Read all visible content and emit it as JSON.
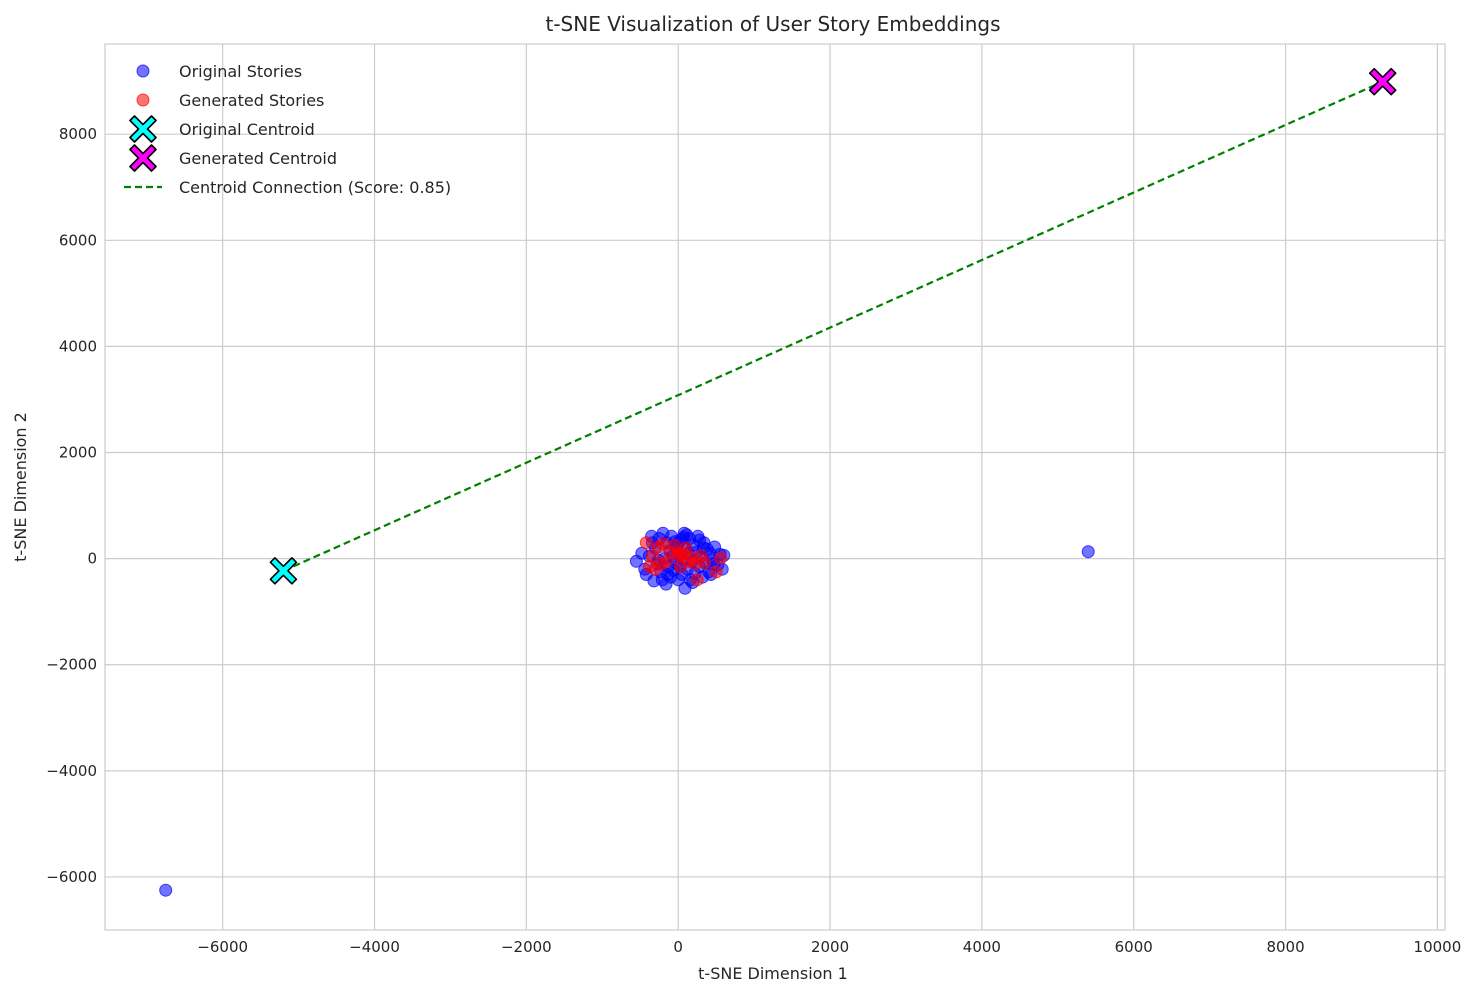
{
  "chart_data": {
    "type": "scatter",
    "title": "t-SNE Visualization of User Story Embeddings",
    "xlabel": "t-SNE Dimension 1",
    "ylabel": "t-SNE Dimension 2",
    "xlim": [
      -7550,
      10100
    ],
    "ylim": [
      -7000,
      9700
    ],
    "xticks": [
      -6000,
      -4000,
      -2000,
      0,
      2000,
      4000,
      6000,
      8000,
      10000
    ],
    "xtick_labels": [
      "−6000",
      "−4000",
      "−2000",
      "0",
      "2000",
      "4000",
      "6000",
      "8000",
      "10000"
    ],
    "yticks": [
      -6000,
      -4000,
      -2000,
      0,
      2000,
      4000,
      6000,
      8000
    ],
    "ytick_labels": [
      "−6000",
      "−4000",
      "−2000",
      "0",
      "2000",
      "4000",
      "6000",
      "8000"
    ],
    "grid": true,
    "legend_position": "top-left",
    "series": [
      {
        "name": "Original Stories",
        "kind": "points",
        "color": "#0000ff",
        "points": [
          [
            -6750,
            -6250
          ],
          [
            5400,
            130
          ],
          [
            -550,
            -50
          ],
          [
            -480,
            100
          ],
          [
            -420,
            -300
          ],
          [
            -380,
            50
          ],
          [
            -350,
            420
          ],
          [
            -320,
            -420
          ],
          [
            -300,
            200
          ],
          [
            -280,
            -100
          ],
          [
            -250,
            380
          ],
          [
            -230,
            -250
          ],
          [
            -200,
            480
          ],
          [
            -180,
            0
          ],
          [
            -160,
            -480
          ],
          [
            -150,
            300
          ],
          [
            -130,
            -150
          ],
          [
            -110,
            150
          ],
          [
            -100,
            -350
          ],
          [
            -90,
            420
          ],
          [
            -70,
            50
          ],
          [
            -60,
            -220
          ],
          [
            -40,
            320
          ],
          [
            -30,
            -80
          ],
          [
            -20,
            200
          ],
          [
            0,
            -400
          ],
          [
            10,
            80
          ],
          [
            20,
            -150
          ],
          [
            40,
            360
          ],
          [
            50,
            -300
          ],
          [
            60,
            0
          ],
          [
            80,
            480
          ],
          [
            90,
            -560
          ],
          [
            100,
            200
          ],
          [
            120,
            -200
          ],
          [
            130,
            100
          ],
          [
            150,
            380
          ],
          [
            160,
            -400
          ],
          [
            180,
            -50
          ],
          [
            200,
            250
          ],
          [
            220,
            -280
          ],
          [
            240,
            120
          ],
          [
            260,
            420
          ],
          [
            280,
            -150
          ],
          [
            300,
            50
          ],
          [
            320,
            -350
          ],
          [
            340,
            300
          ],
          [
            360,
            -80
          ],
          [
            380,
            180
          ],
          [
            400,
            -250
          ],
          [
            420,
            100
          ],
          [
            450,
            -20
          ],
          [
            480,
            220
          ],
          [
            520,
            -120
          ],
          [
            550,
            80
          ],
          [
            580,
            -200
          ],
          [
            600,
            60
          ],
          [
            -440,
            -200
          ],
          [
            -260,
            -30
          ],
          [
            -140,
            -300
          ],
          [
            0,
            300
          ],
          [
            70,
            400
          ],
          [
            190,
            -450
          ],
          [
            280,
            350
          ],
          [
            430,
            -300
          ],
          [
            -340,
            300
          ],
          [
            -210,
            -400
          ],
          [
            110,
            450
          ],
          [
            330,
            200
          ],
          [
            470,
            -100
          ]
        ]
      },
      {
        "name": "Generated Stories",
        "kind": "points",
        "color": "#ff0000",
        "points": [
          [
            -420,
            300
          ],
          [
            -380,
            -150
          ],
          [
            -340,
            50
          ],
          [
            -300,
            -200
          ],
          [
            -260,
            220
          ],
          [
            -200,
            280
          ],
          [
            -150,
            -50
          ],
          [
            -100,
            120
          ],
          [
            -50,
            250
          ],
          [
            0,
            100
          ],
          [
            30,
            -150
          ],
          [
            60,
            80
          ],
          [
            100,
            200
          ],
          [
            140,
            -50
          ],
          [
            180,
            20
          ],
          [
            220,
            -100
          ],
          [
            250,
            -400
          ],
          [
            300,
            50
          ],
          [
            350,
            -80
          ],
          [
            500,
            -250
          ],
          [
            560,
            10
          ],
          [
            -220,
            -100
          ],
          [
            20,
            60
          ]
        ]
      },
      {
        "name": "Original Centroid",
        "kind": "marker",
        "color": "#00ffff",
        "points": [
          [
            -5200,
            -230
          ]
        ]
      },
      {
        "name": "Generated Centroid",
        "kind": "marker",
        "color": "#ff00ff",
        "points": [
          [
            9280,
            8990
          ]
        ]
      },
      {
        "name": "Centroid Connection (Score: 0.85)",
        "kind": "line",
        "color": "#008000",
        "points": [
          [
            -5200,
            -230
          ],
          [
            9280,
            8990
          ]
        ]
      }
    ]
  }
}
